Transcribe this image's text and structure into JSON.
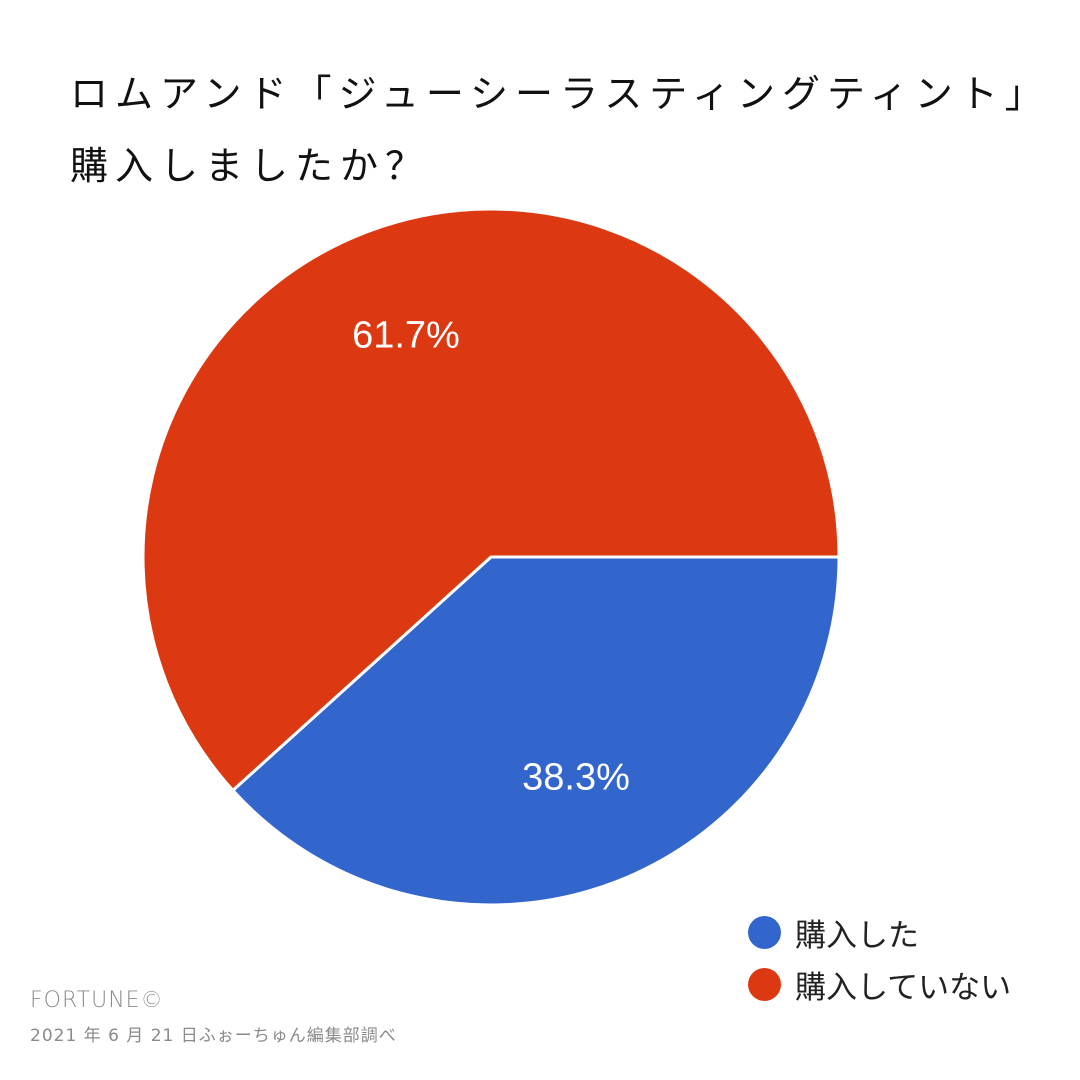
{
  "header": {
    "title_line1": "ロムアンド「ジューシーラスティングティント」",
    "title_line2": "購入しましたか？"
  },
  "chart_data": {
    "type": "pie",
    "title": "ロムアンド「ジューシーラスティングティント」購入しましたか？",
    "categories": [
      "購入した",
      "購入していない"
    ],
    "values": [
      38.3,
      61.7
    ],
    "unit": "%",
    "colors": [
      "#3366cc",
      "#dc3912"
    ],
    "data_labels": [
      "38.3%",
      "61.7%"
    ],
    "start_angle_deg": 90,
    "direction": "clockwise",
    "legend_position": "bottom-right"
  },
  "labels": {
    "slice_0": "38.3%",
    "slice_1": "61.7%"
  },
  "legend": {
    "items": [
      {
        "label": "購入した",
        "color": "#3366cc"
      },
      {
        "label": "購入していない",
        "color": "#dc3912"
      }
    ]
  },
  "credit": {
    "brand": "FORTUNE©",
    "note": "2021 年 6 月 21 日ふぉーちゅん編集部調べ"
  }
}
